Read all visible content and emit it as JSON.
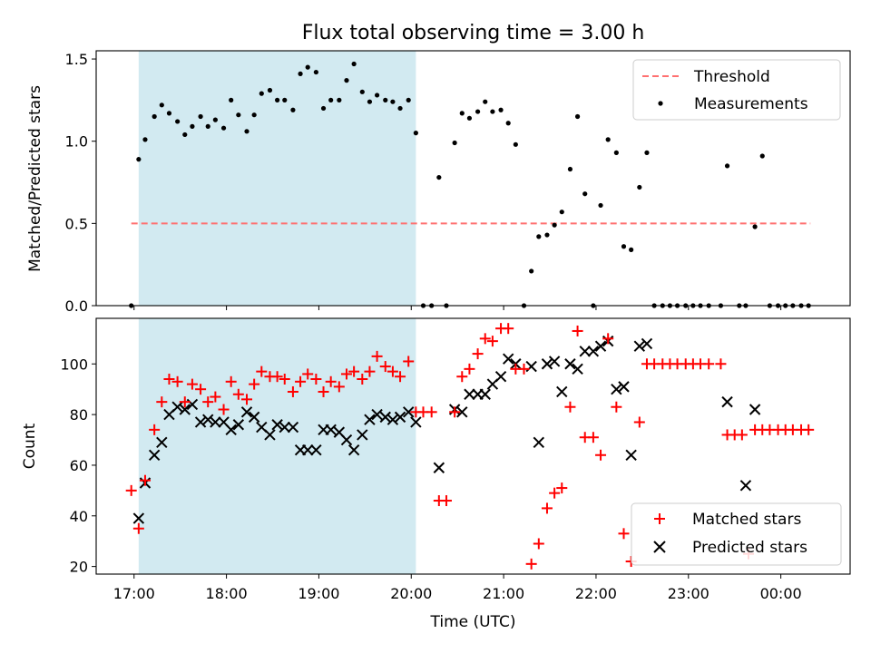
{
  "chart_data": [
    {
      "type": "scatter",
      "title": "Flux total observing time = 3.00 h",
      "xlabel": "",
      "ylabel": "Matched/Predicted stars",
      "xlim_hours": [
        16.59,
        24.75
      ],
      "ylim": [
        0,
        1.55
      ],
      "y_ticks": [
        0.0,
        0.5,
        1.0,
        1.5
      ],
      "y_tick_labels": [
        "0.0",
        "0.5",
        "1.0",
        "1.5"
      ],
      "shaded_interval_hours": [
        17.05,
        20.05
      ],
      "shade_color": "#add8e6",
      "legend": {
        "loc": "top-right",
        "entries": [
          "Threshold",
          "Measurements"
        ]
      },
      "threshold": {
        "name": "Threshold",
        "value": 0.5,
        "x_range_hours": [
          16.97,
          24.32
        ],
        "color": "#ff7070",
        "style": "dashed"
      },
      "series": [
        {
          "name": "Measurements",
          "color": "#000000",
          "x_hours": [
            16.97,
            17.05,
            17.12,
            17.22,
            17.3,
            17.38,
            17.47,
            17.55,
            17.63,
            17.72,
            17.8,
            17.88,
            17.97,
            18.05,
            18.13,
            18.22,
            18.3,
            18.38,
            18.47,
            18.55,
            18.63,
            18.72,
            18.8,
            18.88,
            18.97,
            19.05,
            19.13,
            19.22,
            19.3,
            19.38,
            19.47,
            19.55,
            19.63,
            19.72,
            19.8,
            19.88,
            19.97,
            20.05,
            20.13,
            20.22,
            20.3,
            20.38,
            20.47,
            20.55,
            20.63,
            20.72,
            20.8,
            20.88,
            20.97,
            21.05,
            21.13,
            21.22,
            21.3,
            21.38,
            21.47,
            21.55,
            21.63,
            21.72,
            21.8,
            21.88,
            21.97,
            22.05,
            22.13,
            22.22,
            22.3,
            22.38,
            22.47,
            22.55,
            22.63,
            22.72,
            22.8,
            22.88,
            22.97,
            23.05,
            23.13,
            23.22,
            23.35,
            23.42,
            23.55,
            23.62,
            23.72,
            23.8,
            23.88,
            23.97,
            24.05,
            24.13,
            24.22,
            24.3
          ],
          "y": [
            0,
            0.89,
            1.01,
            1.15,
            1.22,
            1.17,
            1.12,
            1.04,
            1.09,
            1.15,
            1.09,
            1.13,
            1.08,
            1.25,
            1.16,
            1.06,
            1.16,
            1.29,
            1.31,
            1.25,
            1.25,
            1.19,
            1.41,
            1.45,
            1.42,
            1.2,
            1.25,
            1.25,
            1.37,
            1.47,
            1.3,
            1.24,
            1.28,
            1.25,
            1.24,
            1.2,
            1.25,
            1.05,
            0,
            0,
            0.78,
            0,
            0.99,
            1.17,
            1.14,
            1.18,
            1.24,
            1.18,
            1.19,
            1.11,
            0.98,
            0,
            0.21,
            0.42,
            0.43,
            0.49,
            0.57,
            0.83,
            1.15,
            0.68,
            0,
            0.61,
            1.01,
            0.93,
            0.36,
            0.34,
            0.72,
            0.93,
            0,
            0,
            0,
            0,
            0,
            0,
            0,
            0,
            0,
            0.85,
            0,
            0,
            0.48,
            0.91,
            0,
            0,
            0,
            0,
            0,
            0
          ]
        }
      ]
    },
    {
      "type": "scatter",
      "title": "",
      "xlabel": "Time (UTC)",
      "ylabel": "Count",
      "xlim_hours": [
        16.59,
        24.75
      ],
      "ylim": [
        17,
        118
      ],
      "y_ticks": [
        20,
        40,
        60,
        80,
        100
      ],
      "y_tick_labels": [
        "20",
        "40",
        "60",
        "80",
        "100"
      ],
      "x_ticks_hours": [
        17,
        18,
        19,
        20,
        21,
        22,
        23,
        24
      ],
      "x_tick_labels": [
        "17:00",
        "18:00",
        "19:00",
        "20:00",
        "21:00",
        "22:00",
        "23:00",
        "00:00"
      ],
      "shaded_interval_hours": [
        17.05,
        20.05
      ],
      "shade_color": "#add8e6",
      "legend": {
        "loc": "bottom-right",
        "entries": [
          "Matched stars",
          "Predicted stars"
        ]
      },
      "series": [
        {
          "name": "Matched stars",
          "marker": "+",
          "color": "#ff0000",
          "x_hours": [
            16.97,
            17.05,
            17.12,
            17.22,
            17.3,
            17.38,
            17.47,
            17.55,
            17.63,
            17.72,
            17.8,
            17.88,
            17.97,
            18.05,
            18.13,
            18.22,
            18.3,
            18.38,
            18.47,
            18.55,
            18.63,
            18.72,
            18.8,
            18.88,
            18.97,
            19.05,
            19.13,
            19.22,
            19.3,
            19.38,
            19.47,
            19.55,
            19.63,
            19.72,
            19.8,
            19.88,
            19.97,
            20.05,
            20.13,
            20.22,
            20.3,
            20.38,
            20.47,
            20.55,
            20.63,
            20.72,
            20.8,
            20.88,
            20.97,
            21.05,
            21.13,
            21.22,
            21.3,
            21.38,
            21.47,
            21.55,
            21.63,
            21.72,
            21.8,
            21.88,
            21.97,
            22.05,
            22.13,
            22.22,
            22.3,
            22.38,
            22.47,
            22.55,
            22.63,
            22.72,
            22.8,
            22.88,
            22.97,
            23.05,
            23.13,
            23.22,
            23.35,
            23.42,
            23.5,
            23.58,
            23.65,
            23.72,
            23.8,
            23.88,
            23.97,
            24.05,
            24.13,
            24.22,
            24.3
          ],
          "y": [
            50,
            35,
            54,
            74,
            85,
            94,
            93,
            85,
            92,
            90,
            85,
            87,
            82,
            93,
            88,
            86,
            92,
            97,
            95,
            95,
            94,
            89,
            93,
            96,
            94,
            89,
            93,
            91,
            96,
            97,
            94,
            97,
            103,
            99,
            97,
            95,
            101,
            81,
            81,
            81,
            46,
            46,
            81,
            95,
            98,
            104,
            110,
            109,
            114,
            114,
            98,
            98,
            21,
            29,
            43,
            49,
            51,
            83,
            113,
            71,
            71,
            64,
            110,
            83,
            33,
            22,
            77,
            100,
            100,
            100,
            100,
            100,
            100,
            100,
            100,
            100,
            100,
            72,
            72,
            72,
            25,
            74,
            74,
            74,
            74,
            74,
            74,
            74,
            74
          ]
        },
        {
          "name": "Predicted stars",
          "marker": "x",
          "color": "#000000",
          "x_hours": [
            17.05,
            17.12,
            17.22,
            17.3,
            17.38,
            17.47,
            17.55,
            17.63,
            17.72,
            17.8,
            17.88,
            17.97,
            18.05,
            18.13,
            18.22,
            18.3,
            18.38,
            18.47,
            18.55,
            18.63,
            18.72,
            18.8,
            18.88,
            18.97,
            19.05,
            19.13,
            19.22,
            19.3,
            19.38,
            19.47,
            19.55,
            19.63,
            19.72,
            19.8,
            19.88,
            19.97,
            20.05,
            20.3,
            20.47,
            20.55,
            20.63,
            20.72,
            20.8,
            20.88,
            20.97,
            21.05,
            21.13,
            21.3,
            21.38,
            21.47,
            21.55,
            21.63,
            21.72,
            21.8,
            21.88,
            21.97,
            22.05,
            22.13,
            22.22,
            22.3,
            22.38,
            22.47,
            22.55,
            23.42,
            23.62,
            23.72
          ],
          "y": [
            39,
            53,
            64,
            69,
            80,
            83,
            82,
            84,
            77,
            78,
            77,
            77,
            74,
            76,
            81,
            79,
            75,
            72,
            76,
            75,
            75,
            66,
            66,
            66,
            74,
            74,
            73,
            70,
            66,
            72,
            78,
            80,
            79,
            78,
            79,
            81,
            77,
            59,
            82,
            81,
            88,
            88,
            88,
            92,
            95,
            102,
            100,
            99,
            69,
            100,
            101,
            89,
            100,
            98,
            105,
            105,
            107,
            109,
            90,
            91,
            64,
            107,
            108,
            85,
            52,
            82
          ]
        }
      ]
    }
  ]
}
